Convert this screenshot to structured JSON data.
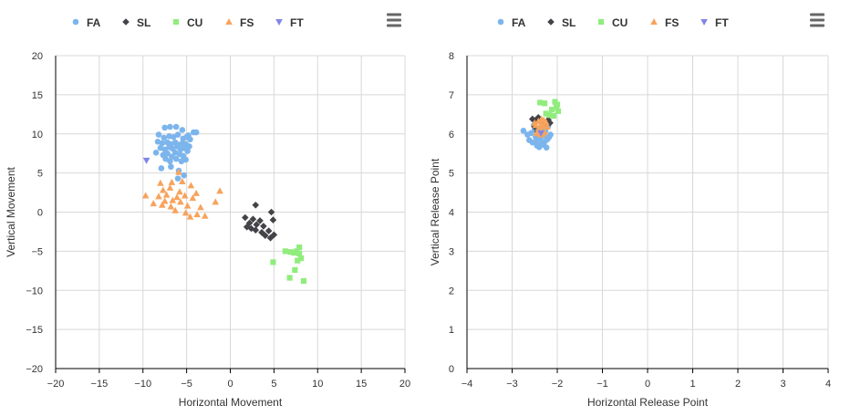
{
  "legend": {
    "items": [
      {
        "label": "FA",
        "color": "#7cb5ec",
        "marker": "circle"
      },
      {
        "label": "SL",
        "color": "#434348",
        "marker": "diamond"
      },
      {
        "label": "CU",
        "color": "#90ed7d",
        "marker": "square"
      },
      {
        "label": "FS",
        "color": "#f7a35c",
        "marker": "triangle"
      },
      {
        "label": "FT",
        "color": "#8085e9",
        "marker": "triangle-down"
      }
    ]
  },
  "menu_icon": "hamburger-menu-icon",
  "chart_data": [
    {
      "type": "scatter",
      "title": "",
      "xlabel": "Horizontal Movement",
      "ylabel": "Vertical Movement",
      "xlim": [
        -20,
        20
      ],
      "ylim": [
        -20,
        20
      ],
      "xticks": [
        -20,
        -15,
        -10,
        -5,
        0,
        5,
        10,
        15,
        20
      ],
      "yticks": [
        -20,
        -15,
        -10,
        -5,
        0,
        5,
        10,
        15,
        20
      ],
      "grid": true,
      "legend_position": "top-center",
      "series": [
        {
          "name": "FA",
          "points": [
            [
              -7.5,
              10.8
            ],
            [
              -6.9,
              10.9
            ],
            [
              -6.2,
              10.9
            ],
            [
              -5.5,
              10.5
            ],
            [
              -4.8,
              9.8
            ],
            [
              -4.2,
              10.2
            ],
            [
              -3.9,
              10.2
            ],
            [
              -8.2,
              9.9
            ],
            [
              -7.6,
              9.5
            ],
            [
              -7.0,
              9.7
            ],
            [
              -6.5,
              9.6
            ],
            [
              -6.0,
              9.9
            ],
            [
              -5.4,
              9.4
            ],
            [
              -5.0,
              9.6
            ],
            [
              -4.6,
              9.3
            ],
            [
              -8.3,
              9.0
            ],
            [
              -7.8,
              8.8
            ],
            [
              -7.2,
              8.9
            ],
            [
              -6.8,
              8.7
            ],
            [
              -6.3,
              8.9
            ],
            [
              -5.9,
              8.6
            ],
            [
              -5.5,
              8.8
            ],
            [
              -5.1,
              8.7
            ],
            [
              -4.7,
              8.4
            ],
            [
              -8.0,
              8.2
            ],
            [
              -7.5,
              8.0
            ],
            [
              -7.0,
              8.3
            ],
            [
              -6.6,
              8.1
            ],
            [
              -6.1,
              8.4
            ],
            [
              -5.7,
              8.0
            ],
            [
              -5.3,
              8.2
            ],
            [
              -4.9,
              7.8
            ],
            [
              -8.5,
              7.6
            ],
            [
              -7.7,
              7.3
            ],
            [
              -7.2,
              7.5
            ],
            [
              -6.7,
              7.1
            ],
            [
              -6.3,
              7.6
            ],
            [
              -5.8,
              7.4
            ],
            [
              -5.4,
              7.2
            ],
            [
              -7.4,
              6.8
            ],
            [
              -6.9,
              6.5
            ],
            [
              -6.2,
              6.8
            ],
            [
              -5.6,
              6.5
            ],
            [
              -5.1,
              6.7
            ],
            [
              -7.9,
              5.6
            ],
            [
              -6.8,
              5.8
            ],
            [
              -5.9,
              5.3
            ],
            [
              -5.3,
              4.7
            ],
            [
              -6.0,
              4.3
            ]
          ]
        },
        {
          "name": "SL",
          "points": [
            [
              2.9,
              0.9
            ],
            [
              4.7,
              0.0
            ],
            [
              1.7,
              -0.7
            ],
            [
              2.6,
              -0.9
            ],
            [
              3.4,
              -1.1
            ],
            [
              4.9,
              -1.0
            ],
            [
              2.2,
              -1.4
            ],
            [
              3.0,
              -1.6
            ],
            [
              3.8,
              -1.8
            ],
            [
              1.9,
              -1.9
            ],
            [
              2.4,
              -2.1
            ],
            [
              2.9,
              -2.3
            ],
            [
              4.4,
              -2.4
            ],
            [
              3.6,
              -2.6
            ],
            [
              4.0,
              -3.0
            ],
            [
              5.0,
              -2.9
            ],
            [
              4.6,
              -3.3
            ]
          ]
        },
        {
          "name": "CU",
          "points": [
            [
              7.9,
              -4.5
            ],
            [
              6.3,
              -5.0
            ],
            [
              6.9,
              -5.1
            ],
            [
              7.3,
              -5.2
            ],
            [
              7.6,
              -5.0
            ],
            [
              7.9,
              -5.3
            ],
            [
              8.1,
              -5.9
            ],
            [
              7.7,
              -6.2
            ],
            [
              4.9,
              -6.4
            ],
            [
              7.4,
              -7.4
            ],
            [
              6.8,
              -8.4
            ],
            [
              8.4,
              -8.8
            ]
          ]
        },
        {
          "name": "FS",
          "points": [
            [
              -5.9,
              5.1
            ],
            [
              -5.5,
              3.9
            ],
            [
              -8.0,
              3.7
            ],
            [
              -6.7,
              3.8
            ],
            [
              -4.5,
              3.4
            ],
            [
              -6.9,
              3.1
            ],
            [
              -7.7,
              2.8
            ],
            [
              -5.8,
              2.6
            ],
            [
              -3.9,
              2.4
            ],
            [
              -1.2,
              2.7
            ],
            [
              -9.7,
              2.1
            ],
            [
              -8.2,
              2.0
            ],
            [
              -7.3,
              2.2
            ],
            [
              -6.1,
              1.9
            ],
            [
              -5.2,
              2.1
            ],
            [
              -4.3,
              1.8
            ],
            [
              -7.5,
              1.4
            ],
            [
              -6.6,
              1.5
            ],
            [
              -5.7,
              1.3
            ],
            [
              -1.7,
              1.3
            ],
            [
              -8.8,
              1.1
            ],
            [
              -7.8,
              0.9
            ],
            [
              -6.8,
              0.7
            ],
            [
              -4.9,
              0.8
            ],
            [
              -3.4,
              0.6
            ],
            [
              -6.3,
              0.2
            ],
            [
              -5.1,
              -0.1
            ],
            [
              -3.8,
              -0.3
            ],
            [
              -4.6,
              -0.6
            ],
            [
              -2.9,
              -0.5
            ]
          ]
        },
        {
          "name": "FT",
          "points": [
            [
              -9.6,
              6.6
            ]
          ]
        }
      ]
    },
    {
      "type": "scatter",
      "title": "",
      "xlabel": "Horizontal Release Point",
      "ylabel": "Vertical Release Point",
      "xlim": [
        -4,
        4
      ],
      "ylim": [
        0,
        8
      ],
      "xticks": [
        -4,
        -3,
        -2,
        -1,
        0,
        1,
        2,
        3,
        4
      ],
      "yticks": [
        0,
        1,
        2,
        3,
        4,
        5,
        6,
        7,
        8
      ],
      "grid": true,
      "legend_position": "top-center",
      "series": [
        {
          "name": "FA",
          "points": [
            [
              -2.75,
              6.08
            ],
            [
              -2.66,
              5.98
            ],
            [
              -2.58,
              6.02
            ],
            [
              -2.5,
              6.12
            ],
            [
              -2.62,
              5.84
            ],
            [
              -2.55,
              5.78
            ],
            [
              -2.48,
              5.92
            ],
            [
              -2.42,
              6.05
            ],
            [
              -2.38,
              5.88
            ],
            [
              -2.35,
              5.74
            ],
            [
              -2.3,
              5.96
            ],
            [
              -2.26,
              6.08
            ],
            [
              -2.22,
              5.86
            ],
            [
              -2.18,
              5.92
            ],
            [
              -2.15,
              5.98
            ],
            [
              -2.45,
              5.7
            ],
            [
              -2.4,
              5.66
            ],
            [
              -2.28,
              5.8
            ],
            [
              -2.33,
              6.15
            ],
            [
              -2.52,
              6.22
            ],
            [
              -2.2,
              6.2
            ],
            [
              -2.46,
              5.82
            ],
            [
              -2.36,
              6.0
            ],
            [
              -2.24,
              5.65
            ],
            [
              -2.3,
              5.72
            ]
          ]
        },
        {
          "name": "SL",
          "points": [
            [
              -2.55,
              6.38
            ],
            [
              -2.48,
              6.35
            ],
            [
              -2.42,
              6.42
            ],
            [
              -2.36,
              6.3
            ],
            [
              -2.5,
              6.18
            ],
            [
              -2.2,
              6.36
            ],
            [
              -2.16,
              6.28
            ],
            [
              -2.44,
              6.05
            ],
            [
              -2.3,
              6.25
            ]
          ]
        },
        {
          "name": "CU",
          "points": [
            [
              -2.38,
              6.8
            ],
            [
              -2.28,
              6.78
            ],
            [
              -2.05,
              6.82
            ],
            [
              -2.0,
              6.75
            ],
            [
              -2.12,
              6.62
            ],
            [
              -1.98,
              6.58
            ],
            [
              -2.18,
              6.48
            ],
            [
              -2.08,
              6.46
            ],
            [
              -2.25,
              6.52
            ],
            [
              -2.02,
              6.68
            ]
          ]
        },
        {
          "name": "FS",
          "points": [
            [
              -2.5,
              6.28
            ],
            [
              -2.42,
              6.32
            ],
            [
              -2.35,
              6.38
            ],
            [
              -2.3,
              6.22
            ],
            [
              -2.25,
              6.3
            ],
            [
              -2.4,
              6.15
            ],
            [
              -2.34,
              6.1
            ],
            [
              -2.28,
              6.05
            ],
            [
              -2.46,
              6.02
            ],
            [
              -2.38,
              5.98
            ],
            [
              -2.3,
              6.35
            ],
            [
              -2.22,
              6.18
            ],
            [
              -2.48,
              6.22
            ],
            [
              -2.36,
              6.25
            ],
            [
              -2.32,
              6.0
            ],
            [
              -2.4,
              6.08
            ]
          ]
        },
        {
          "name": "FT",
          "points": [
            [
              -2.36,
              6.02
            ]
          ]
        }
      ]
    }
  ]
}
